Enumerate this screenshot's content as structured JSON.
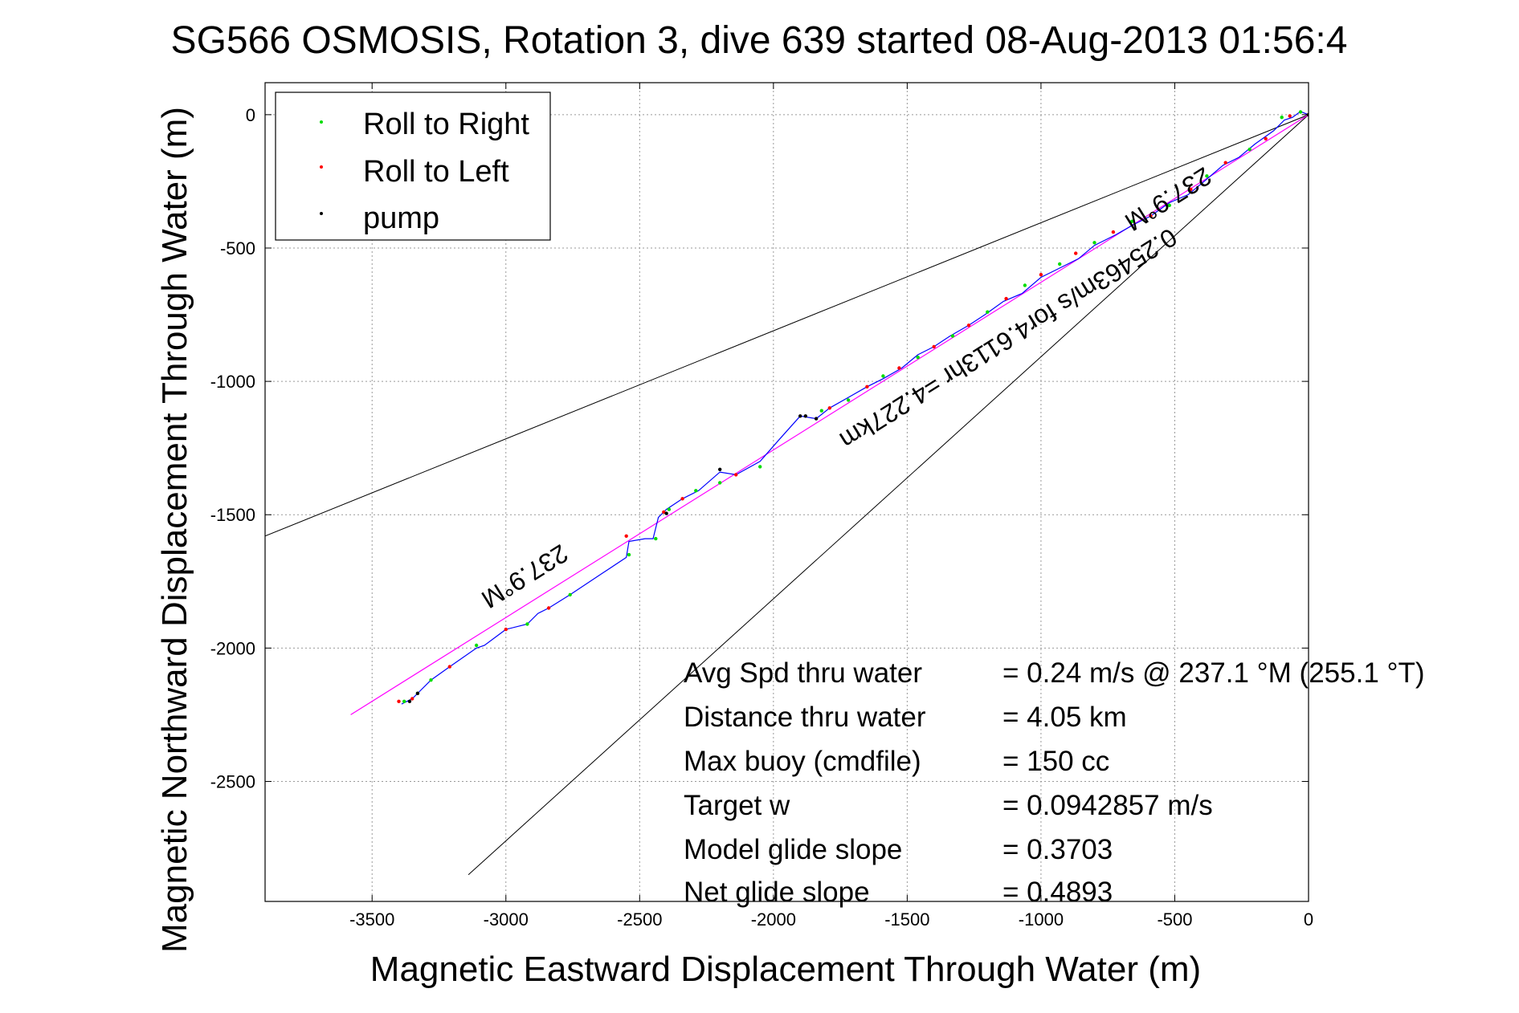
{
  "chart_data": {
    "type": "scatter",
    "title": "SG566 OSMOSIS, Rotation 3, dive 639 started 08-Aug-2013 01:56:4",
    "xlabel": "Magnetic Eastward Displacement Through Water (m)",
    "ylabel": "Magnetic Northward Displacement Through Water (m)",
    "xlim": [
      -3900,
      0
    ],
    "ylim": [
      -2950,
      120
    ],
    "xticks": [
      -3500,
      -3000,
      -2500,
      -2000,
      -1500,
      -1000,
      -500,
      0
    ],
    "yticks": [
      0,
      -500,
      -1000,
      -1500,
      -2000,
      -2500
    ],
    "grid": true,
    "legend_position": "top-left",
    "colors": {
      "roll_right": "#00dd00",
      "roll_left": "#ff0000",
      "pump": "#000000",
      "track": "#0000ff",
      "heading_line": "#ff00ff",
      "cone": "#000000"
    },
    "series": [
      {
        "name": "Roll to Right",
        "color": "#00dd00",
        "points": [
          [
            -30,
            10
          ],
          [
            -100,
            -10
          ],
          [
            -220,
            -130
          ],
          [
            -380,
            -230
          ],
          [
            -520,
            -340
          ],
          [
            -660,
            -400
          ],
          [
            -800,
            -480
          ],
          [
            -930,
            -560
          ],
          [
            -1060,
            -640
          ],
          [
            -1200,
            -740
          ],
          [
            -1330,
            -830
          ],
          [
            -1460,
            -910
          ],
          [
            -1590,
            -980
          ],
          [
            -1720,
            -1070
          ],
          [
            -1820,
            -1110
          ],
          [
            -2050,
            -1320
          ],
          [
            -2200,
            -1380
          ],
          [
            -2290,
            -1410
          ],
          [
            -2390,
            -1480
          ],
          [
            -2440,
            -1590
          ],
          [
            -2540,
            -1650
          ],
          [
            -2760,
            -1800
          ],
          [
            -2920,
            -1910
          ],
          [
            -3110,
            -1990
          ],
          [
            -3280,
            -2120
          ],
          [
            -3330,
            -2170
          ],
          [
            -3380,
            -2200
          ]
        ]
      },
      {
        "name": "Roll to Left",
        "color": "#ff0000",
        "points": [
          [
            0,
            0
          ],
          [
            -70,
            -5
          ],
          [
            -160,
            -90
          ],
          [
            -310,
            -180
          ],
          [
            -440,
            -280
          ],
          [
            -590,
            -380
          ],
          [
            -730,
            -440
          ],
          [
            -870,
            -520
          ],
          [
            -1000,
            -600
          ],
          [
            -1130,
            -690
          ],
          [
            -1270,
            -790
          ],
          [
            -1400,
            -870
          ],
          [
            -1530,
            -950
          ],
          [
            -1650,
            -1020
          ],
          [
            -1790,
            -1100
          ],
          [
            -2140,
            -1350
          ],
          [
            -2340,
            -1440
          ],
          [
            -2410,
            -1490
          ],
          [
            -2550,
            -1580
          ],
          [
            -2840,
            -1850
          ],
          [
            -3000,
            -1930
          ],
          [
            -3210,
            -2070
          ],
          [
            -3350,
            -2190
          ],
          [
            -3400,
            -2200
          ]
        ]
      },
      {
        "name": "pump",
        "color": "#000000",
        "points": [
          [
            0,
            0
          ],
          [
            -1840,
            -1140
          ],
          [
            -1880,
            -1130
          ],
          [
            -1900,
            -1130
          ],
          [
            -2200,
            -1330
          ],
          [
            -2400,
            -1495
          ],
          [
            -3330,
            -2170
          ],
          [
            -3360,
            -2200
          ]
        ]
      }
    ],
    "track": {
      "name": "track",
      "color": "#0000ff",
      "points": [
        [
          0,
          0
        ],
        [
          -30,
          12
        ],
        [
          -60,
          -10
        ],
        [
          -90,
          -20
        ],
        [
          -130,
          -60
        ],
        [
          -200,
          -110
        ],
        [
          -260,
          -160
        ],
        [
          -320,
          -190
        ],
        [
          -390,
          -250
        ],
        [
          -450,
          -300
        ],
        [
          -520,
          -330
        ],
        [
          -590,
          -380
        ],
        [
          -650,
          -410
        ],
        [
          -720,
          -450
        ],
        [
          -800,
          -490
        ],
        [
          -860,
          -540
        ],
        [
          -940,
          -580
        ],
        [
          -1000,
          -610
        ],
        [
          -1070,
          -670
        ],
        [
          -1140,
          -700
        ],
        [
          -1210,
          -750
        ],
        [
          -1270,
          -790
        ],
        [
          -1340,
          -830
        ],
        [
          -1400,
          -870
        ],
        [
          -1460,
          -900
        ],
        [
          -1520,
          -950
        ],
        [
          -1590,
          -990
        ],
        [
          -1650,
          -1020
        ],
        [
          -1720,
          -1060
        ],
        [
          -1790,
          -1100
        ],
        [
          -1840,
          -1140
        ],
        [
          -1900,
          -1130
        ],
        [
          -1980,
          -1220
        ],
        [
          -2050,
          -1300
        ],
        [
          -2140,
          -1350
        ],
        [
          -2200,
          -1340
        ],
        [
          -2280,
          -1410
        ],
        [
          -2340,
          -1440
        ],
        [
          -2400,
          -1480
        ],
        [
          -2430,
          -1510
        ],
        [
          -2450,
          -1590
        ],
        [
          -2480,
          -1590
        ],
        [
          -2540,
          -1600
        ],
        [
          -2550,
          -1660
        ],
        [
          -2640,
          -1720
        ],
        [
          -2760,
          -1800
        ],
        [
          -2840,
          -1850
        ],
        [
          -2880,
          -1870
        ],
        [
          -2920,
          -1910
        ],
        [
          -3000,
          -1930
        ],
        [
          -3080,
          -1990
        ],
        [
          -3110,
          -2000
        ],
        [
          -3210,
          -2070
        ],
        [
          -3280,
          -2120
        ],
        [
          -3320,
          -2160
        ],
        [
          -3350,
          -2190
        ],
        [
          -3390,
          -2210
        ]
      ]
    },
    "heading_line": {
      "color": "#ff00ff",
      "points": [
        [
          0,
          0
        ],
        [
          -3580,
          -2250
        ]
      ]
    },
    "cone_lines": [
      {
        "points": [
          [
            0,
            0
          ],
          [
            -3900,
            -1580
          ]
        ]
      },
      {
        "points": [
          [
            0,
            0
          ],
          [
            -3140,
            -2850
          ]
        ]
      }
    ],
    "legend": {
      "entries": [
        "Roll to Right",
        "Roll to Left",
        "pump"
      ]
    },
    "annotations": {
      "heading_upper": "237.9°M",
      "heading_lower": "237.9°M",
      "speed_note": "0.25463m/s for4.6113hr =4.227km"
    },
    "stats": [
      {
        "label": "Avg Spd thru water",
        "value": "=  0.24 m/s @ 237.1 °M (255.1 °T)"
      },
      {
        "label": "Distance thru water",
        "value": "=  4.05 km"
      },
      {
        "label": "Max buoy (cmdfile)",
        "value": "= 150 cc"
      },
      {
        "label": "Target w",
        "value": "= 0.0942857 m/s"
      },
      {
        "label": "Model glide slope",
        "value": "= 0.3703"
      },
      {
        "label": "Net glide slope",
        "value": "= 0.4893"
      }
    ]
  }
}
